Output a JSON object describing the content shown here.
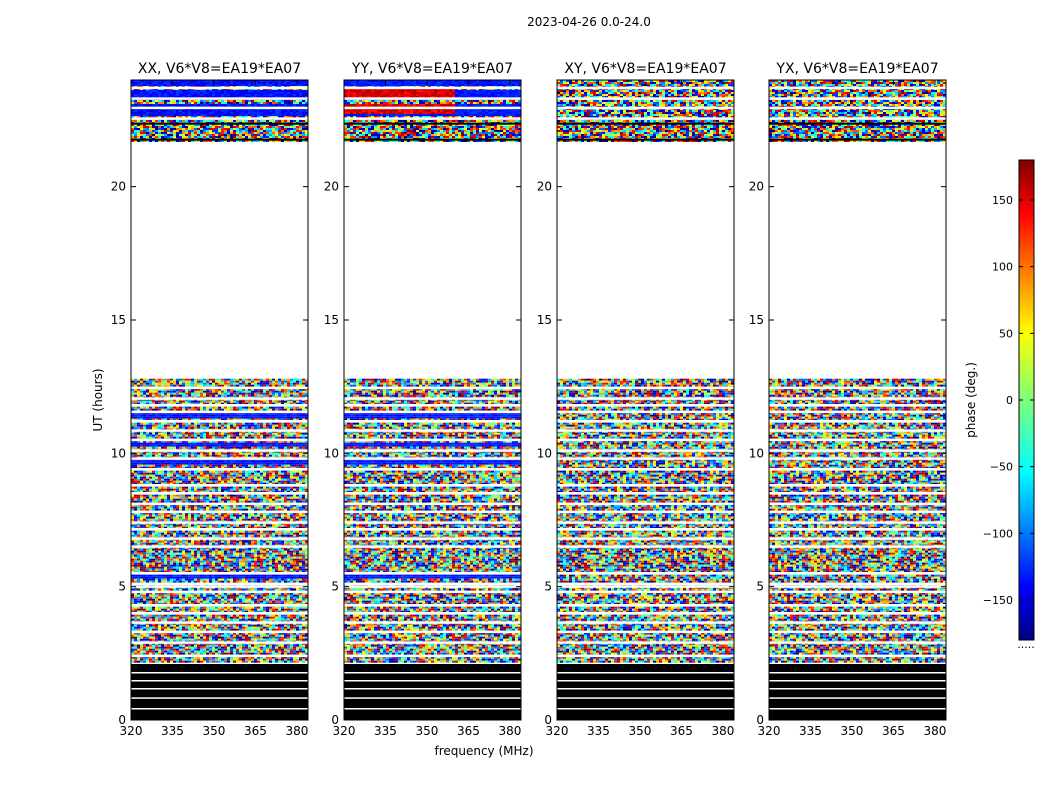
{
  "chart_data": {
    "type": "heatmap",
    "suptitle": "2023-04-26 0.0-24.0",
    "xlabel": "frequency (MHz)",
    "ylabel": "UT (hours)",
    "xlim": [
      320,
      384
    ],
    "ylim": [
      0,
      24
    ],
    "xticks": [
      320,
      335,
      350,
      365,
      380
    ],
    "yticks": [
      0,
      5,
      10,
      15,
      20
    ],
    "panels": [
      {
        "title": "XX, V6*V8=EA19*EA07",
        "polarization": "XX"
      },
      {
        "title": "YY, V6*V8=EA19*EA07",
        "polarization": "YY"
      },
      {
        "title": "XY, V6*V8=EA19*EA07",
        "polarization": "XY"
      },
      {
        "title": "YX, V6*V8=EA19*EA07",
        "polarization": "YX"
      }
    ],
    "colorbar": {
      "label": "phase (deg.)",
      "range": [
        -180,
        180
      ],
      "ticks": [
        150,
        100,
        50,
        0,
        -50,
        -100,
        -150
      ],
      "tick_labels": [
        "150",
        "100",
        "50",
        "0",
        "−50",
        "−100",
        "−150"
      ],
      "colormap": "jet",
      "bottom_note": "....."
    },
    "data_spans_hours": [
      [
        0.0,
        2.1
      ],
      [
        2.2,
        12.8
      ],
      [
        21.7,
        24.0
      ]
    ],
    "gap_hours": [
      [
        12.8,
        21.7
      ]
    ]
  }
}
